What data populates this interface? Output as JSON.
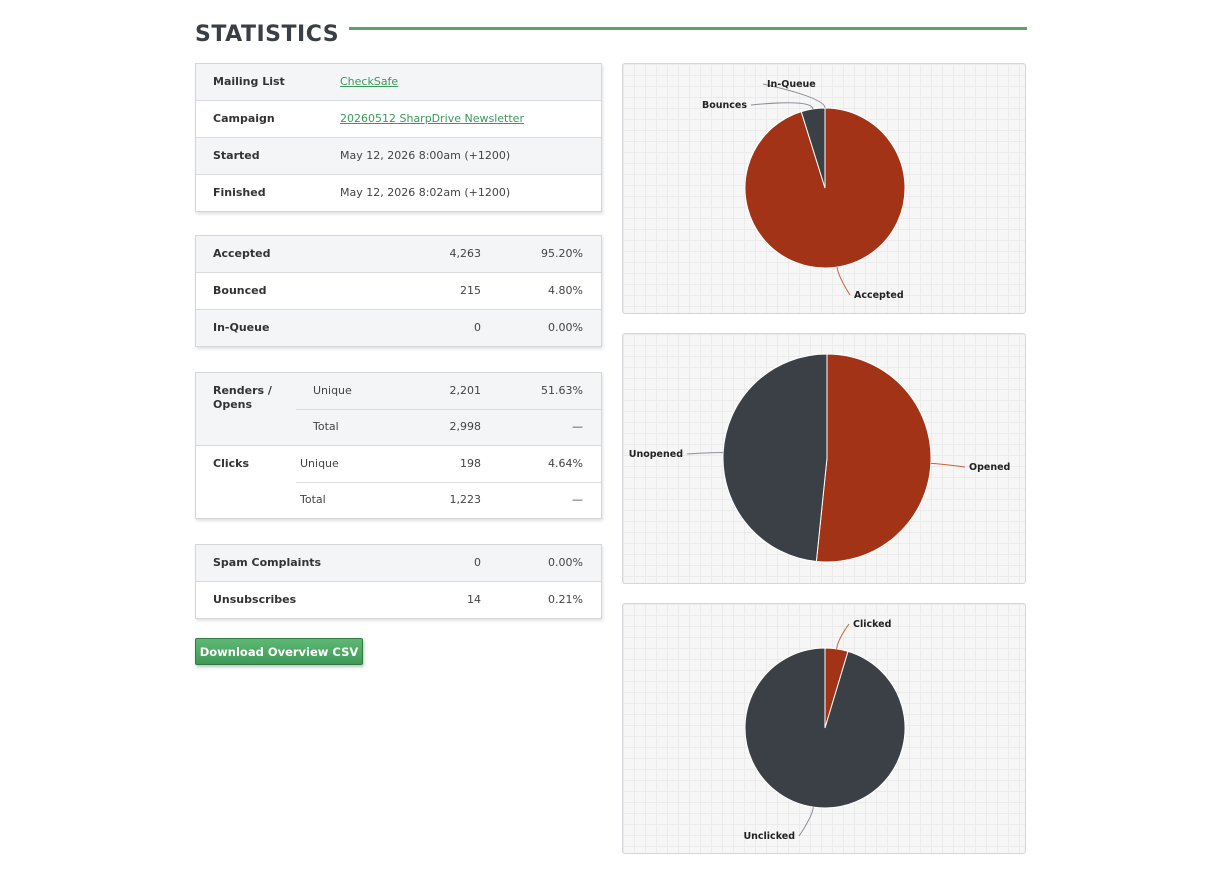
{
  "page": {
    "title": "STATISTICS"
  },
  "campaign_info": [
    {
      "label": "Mailing List",
      "value": "CheckSafe",
      "link": true
    },
    {
      "label": "Campaign",
      "value": "20260512 SharpDrive Newsletter",
      "link": true
    },
    {
      "label": "Started",
      "value": "May 12, 2026 8:00am (+1200)",
      "link": false
    },
    {
      "label": "Finished",
      "value": "May 12, 2026 8:02am (+1200)",
      "link": false
    }
  ],
  "delivery": [
    {
      "label": "Accepted",
      "count": "4,263",
      "percent": "95.20%"
    },
    {
      "label": "Bounced",
      "count": "215",
      "percent": "4.80%"
    },
    {
      "label": "In-Queue",
      "count": "0",
      "percent": "0.00%"
    }
  ],
  "engagement": {
    "opens": {
      "label": "Renders / Opens",
      "unique": {
        "label": "Unique",
        "count": "2,201",
        "percent": "51.63%"
      },
      "total": {
        "label": "Total",
        "count": "2,998",
        "percent": "—"
      }
    },
    "clicks": {
      "label": "Clicks",
      "unique": {
        "label": "Unique",
        "count": "198",
        "percent": "4.64%"
      },
      "total": {
        "label": "Total",
        "count": "1,223",
        "percent": "—"
      }
    }
  },
  "complaints": [
    {
      "label": "Spam Complaints",
      "count": "0",
      "percent": "0.00%"
    },
    {
      "label": "Unsubscribes",
      "count": "14",
      "percent": "0.21%"
    }
  ],
  "download_button": "Download Overview CSV",
  "colors": {
    "accent_green": "#5aa36b",
    "slice_red": "#a23317",
    "slice_dark": "#3b3f46"
  },
  "chart_data": [
    {
      "type": "pie",
      "slices": [
        {
          "label": "Accepted",
          "value": 4263,
          "color": "#a23317"
        },
        {
          "label": "Bounces",
          "value": 215,
          "color": "#3b3f46"
        },
        {
          "label": "In-Queue",
          "value": 0,
          "color": "#3b3f46"
        }
      ]
    },
    {
      "type": "pie",
      "slices": [
        {
          "label": "Opened",
          "value": 2201,
          "color": "#a23317"
        },
        {
          "label": "Unopened",
          "value": 2062,
          "color": "#3b3f46"
        }
      ]
    },
    {
      "type": "pie",
      "slices": [
        {
          "label": "Clicked",
          "value": 198,
          "color": "#a23317"
        },
        {
          "label": "Unclicked",
          "value": 4065,
          "color": "#3b3f46"
        }
      ]
    }
  ]
}
